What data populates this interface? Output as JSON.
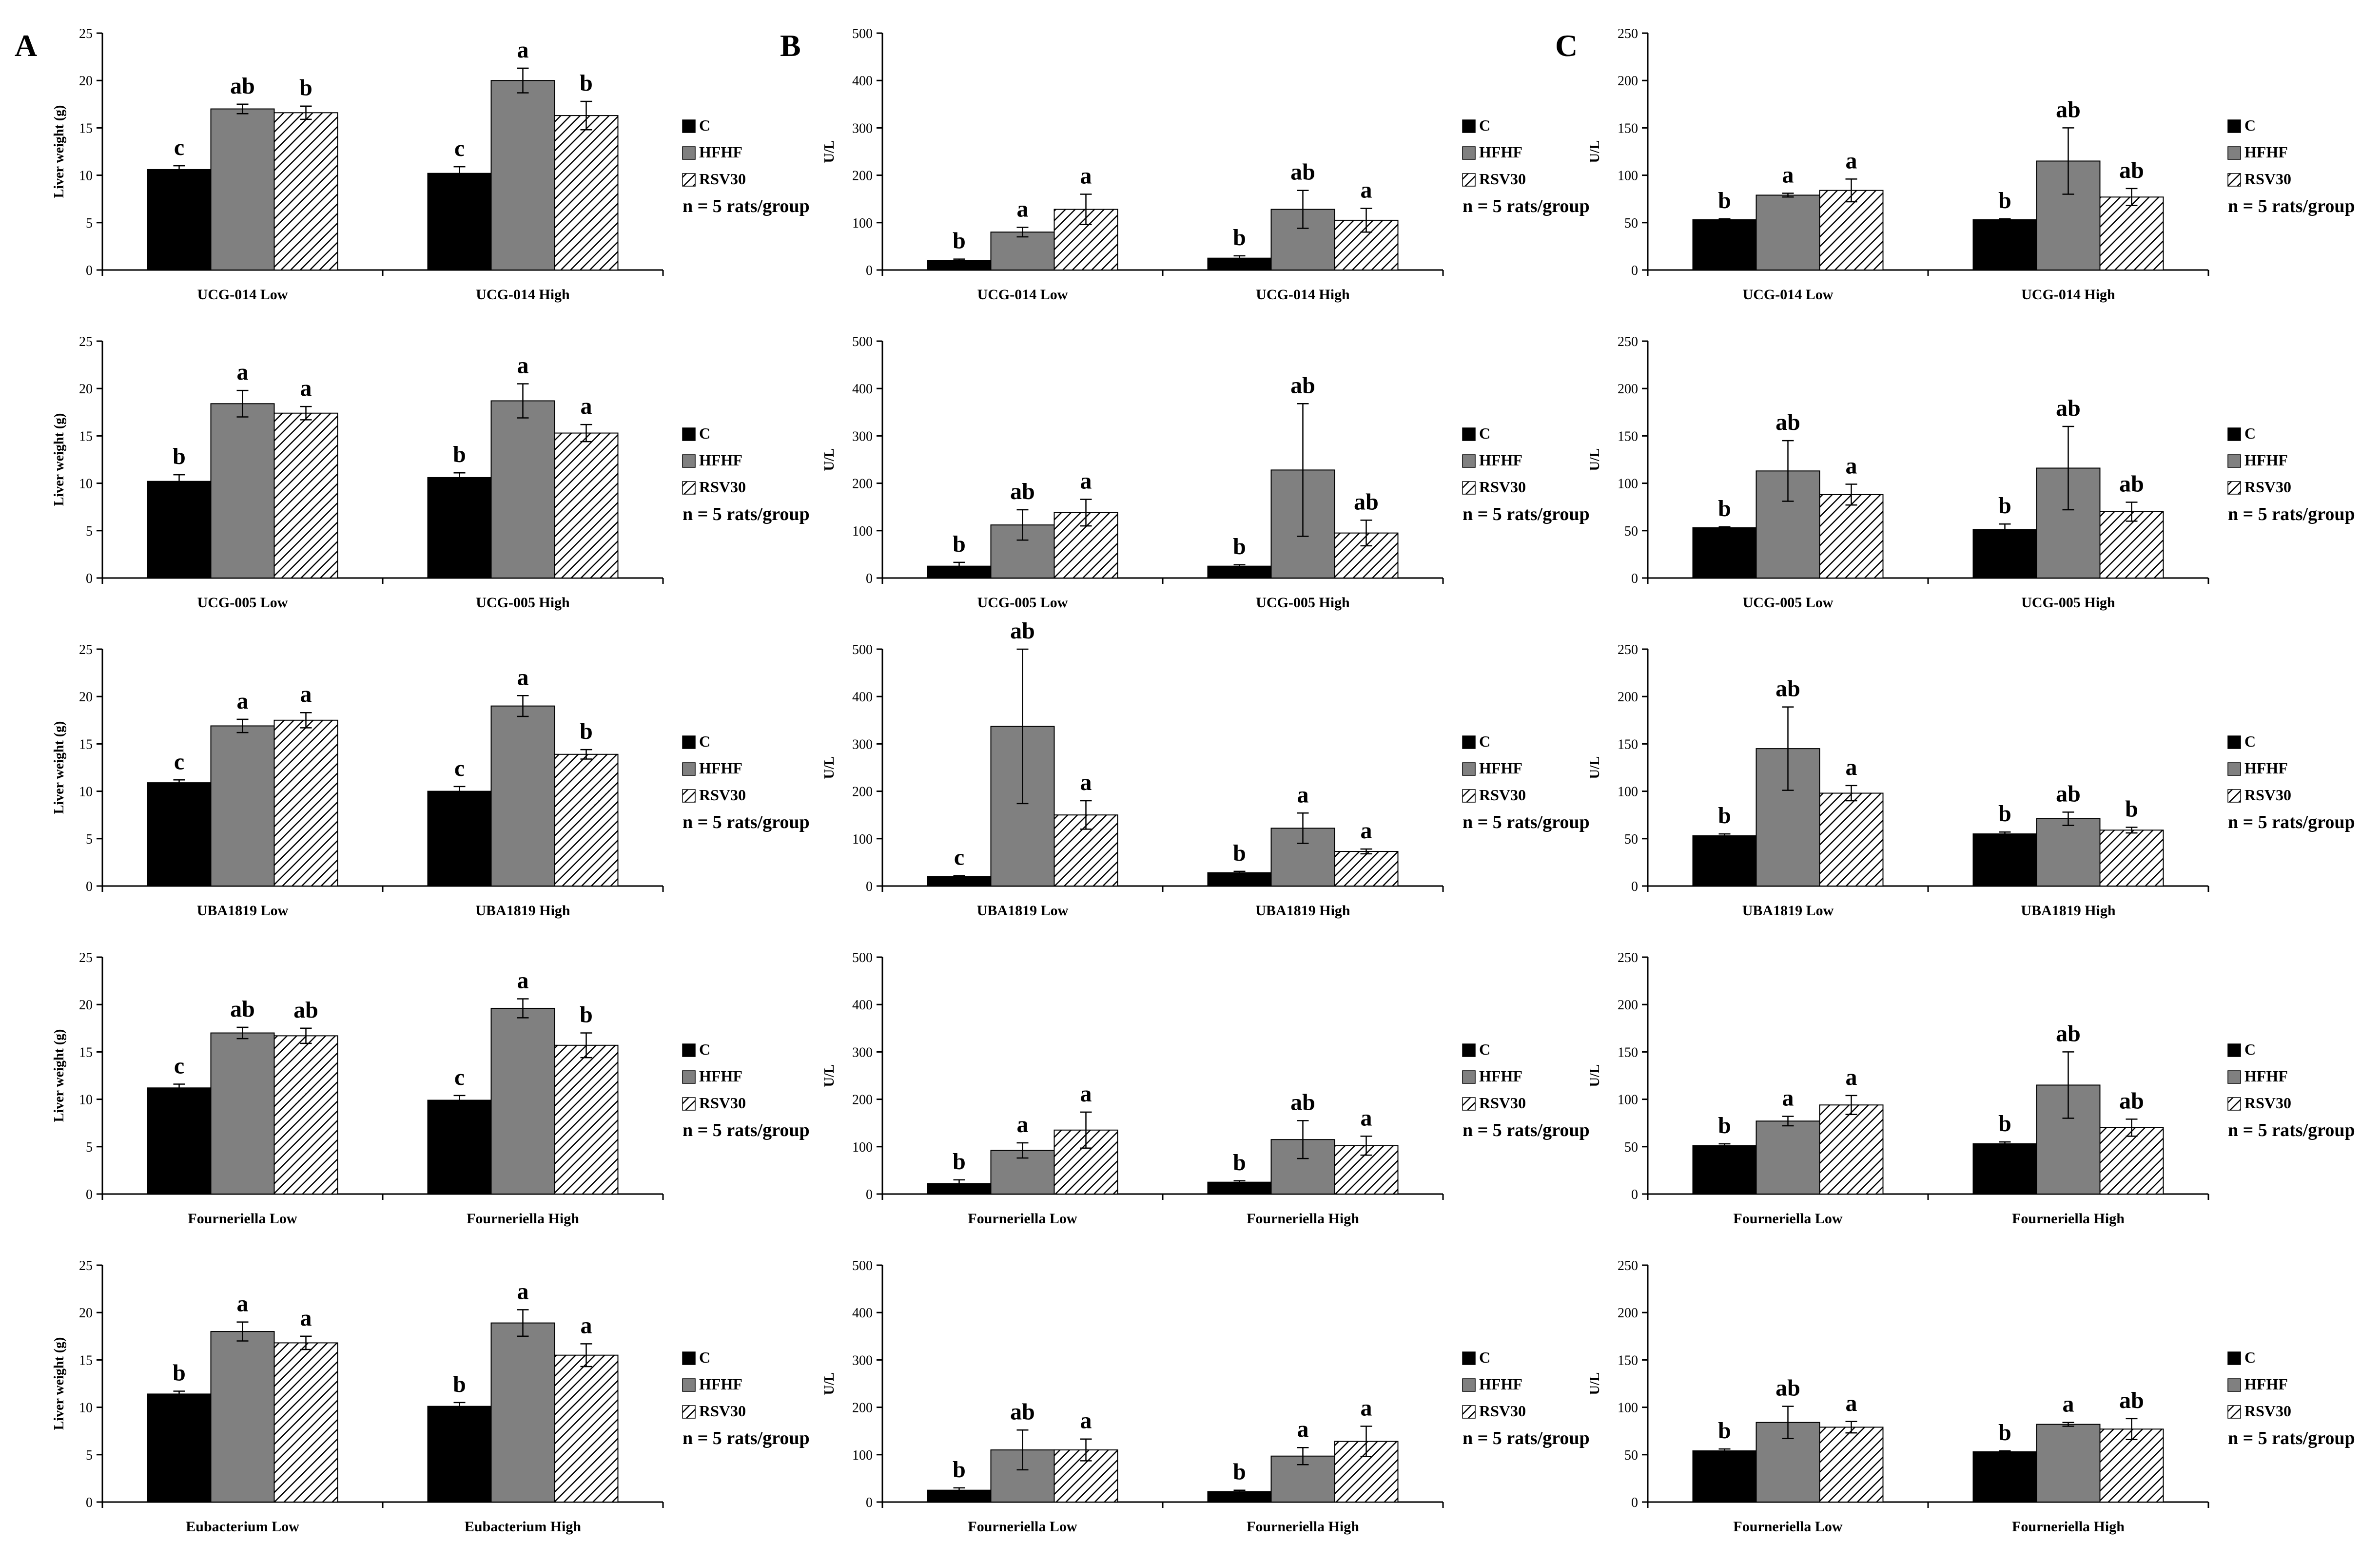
{
  "panel_letters": [
    "A",
    "B",
    "C"
  ],
  "legend": {
    "entries": [
      {
        "name": "C",
        "fill": "#000000",
        "pattern": "solid"
      },
      {
        "name": "HFHF",
        "fill": "#808080",
        "pattern": "solid"
      },
      {
        "name": "RSV30",
        "fill": "#ffffff",
        "pattern": "hatch"
      }
    ],
    "note": "n = 5 rats/group"
  },
  "chart_data": [
    {
      "type": "bar",
      "panel": "A",
      "row": 1,
      "title": "",
      "ylabel": "Liver weight (g)",
      "xlabel": "",
      "ylim": [
        0,
        25
      ],
      "yticks": [
        0,
        5,
        10,
        15,
        20,
        25
      ],
      "categories": [
        "UCG-014 Low",
        "UCG-014 High"
      ],
      "series": [
        {
          "name": "C",
          "values": [
            10.6,
            10.2
          ],
          "errors": [
            0.4,
            0.7
          ],
          "labels": [
            "c",
            "c"
          ]
        },
        {
          "name": "HFHF",
          "values": [
            17.0,
            20.0
          ],
          "errors": [
            0.5,
            1.3
          ],
          "labels": [
            "ab",
            "a"
          ]
        },
        {
          "name": "RSV30",
          "values": [
            16.6,
            16.3
          ],
          "errors": [
            0.7,
            1.5
          ],
          "labels": [
            "b",
            "b"
          ]
        }
      ]
    },
    {
      "type": "bar",
      "panel": "B",
      "row": 1,
      "title": "",
      "ylabel": "U/L",
      "xlabel": "",
      "ylim": [
        0,
        500
      ],
      "yticks": [
        0,
        100,
        200,
        300,
        400,
        500
      ],
      "categories": [
        "UCG-014 Low",
        "UCG-014 High"
      ],
      "series": [
        {
          "name": "C",
          "values": [
            20,
            25
          ],
          "errors": [
            3,
            5
          ],
          "labels": [
            "b",
            "b"
          ]
        },
        {
          "name": "HFHF",
          "values": [
            80,
            128
          ],
          "errors": [
            10,
            40
          ],
          "labels": [
            "a",
            "ab"
          ]
        },
        {
          "name": "RSV30",
          "values": [
            128,
            105
          ],
          "errors": [
            32,
            25
          ],
          "labels": [
            "a",
            "a"
          ]
        }
      ]
    },
    {
      "type": "bar",
      "panel": "C",
      "row": 1,
      "title": "",
      "ylabel": "U/L",
      "xlabel": "",
      "ylim": [
        0,
        250
      ],
      "yticks": [
        0,
        50,
        100,
        150,
        200,
        250
      ],
      "categories": [
        "UCG-014 Low",
        "UCG-014 High"
      ],
      "series": [
        {
          "name": "C",
          "values": [
            53,
            53
          ],
          "errors": [
            1,
            1
          ],
          "labels": [
            "b",
            "b"
          ]
        },
        {
          "name": "HFHF",
          "values": [
            79,
            115
          ],
          "errors": [
            2,
            35
          ],
          "labels": [
            "a",
            "ab"
          ]
        },
        {
          "name": "RSV30",
          "values": [
            84,
            77
          ],
          "errors": [
            12,
            9
          ],
          "labels": [
            "a",
            "ab"
          ]
        }
      ]
    },
    {
      "type": "bar",
      "panel": "A",
      "row": 2,
      "title": "",
      "ylabel": "Liver weight (g)",
      "xlabel": "",
      "ylim": [
        0,
        25
      ],
      "yticks": [
        0,
        5,
        10,
        15,
        20,
        25
      ],
      "categories": [
        "UCG-005 Low",
        "UCG-005 High"
      ],
      "series": [
        {
          "name": "C",
          "values": [
            10.2,
            10.6
          ],
          "errors": [
            0.7,
            0.5
          ],
          "labels": [
            "b",
            "b"
          ]
        },
        {
          "name": "HFHF",
          "values": [
            18.4,
            18.7
          ],
          "errors": [
            1.4,
            1.8
          ],
          "labels": [
            "a",
            "a"
          ]
        },
        {
          "name": "RSV30",
          "values": [
            17.4,
            15.3
          ],
          "errors": [
            0.7,
            0.9
          ],
          "labels": [
            "a",
            "a"
          ]
        }
      ]
    },
    {
      "type": "bar",
      "panel": "B",
      "row": 2,
      "title": "",
      "ylabel": "U/L",
      "xlabel": "",
      "ylim": [
        0,
        500
      ],
      "yticks": [
        0,
        100,
        200,
        300,
        400,
        500
      ],
      "categories": [
        "UCG-005 Low",
        "UCG-005 High"
      ],
      "series": [
        {
          "name": "C",
          "values": [
            25,
            25
          ],
          "errors": [
            8,
            3
          ],
          "labels": [
            "b",
            "b"
          ]
        },
        {
          "name": "HFHF",
          "values": [
            112,
            228
          ],
          "errors": [
            32,
            140
          ],
          "labels": [
            "ab",
            "ab"
          ]
        },
        {
          "name": "RSV30",
          "values": [
            138,
            95
          ],
          "errors": [
            28,
            27
          ],
          "labels": [
            "a",
            "ab"
          ]
        }
      ]
    },
    {
      "type": "bar",
      "panel": "C",
      "row": 2,
      "title": "",
      "ylabel": "U/L",
      "xlabel": "",
      "ylim": [
        0,
        250
      ],
      "yticks": [
        0,
        50,
        100,
        150,
        200,
        250
      ],
      "categories": [
        "UCG-005 Low",
        "UCG-005 High"
      ],
      "series": [
        {
          "name": "C",
          "values": [
            53,
            51
          ],
          "errors": [
            1,
            6
          ],
          "labels": [
            "b",
            "b"
          ]
        },
        {
          "name": "HFHF",
          "values": [
            113,
            116
          ],
          "errors": [
            32,
            44
          ],
          "labels": [
            "ab",
            "ab"
          ]
        },
        {
          "name": "RSV30",
          "values": [
            88,
            70
          ],
          "errors": [
            11,
            10
          ],
          "labels": [
            "a",
            "ab"
          ]
        }
      ]
    },
    {
      "type": "bar",
      "panel": "A",
      "row": 3,
      "title": "",
      "ylabel": "Liver weight (g)",
      "xlabel": "",
      "ylim": [
        0,
        25
      ],
      "yticks": [
        0,
        5,
        10,
        15,
        20,
        25
      ],
      "categories": [
        "UBA1819 Low",
        "UBA1819 High"
      ],
      "series": [
        {
          "name": "C",
          "values": [
            10.9,
            10.0
          ],
          "errors": [
            0.3,
            0.5
          ],
          "labels": [
            "c",
            "c"
          ]
        },
        {
          "name": "HFHF",
          "values": [
            16.9,
            19.0
          ],
          "errors": [
            0.7,
            1.1
          ],
          "labels": [
            "a",
            "a"
          ]
        },
        {
          "name": "RSV30",
          "values": [
            17.5,
            13.9
          ],
          "errors": [
            0.8,
            0.5
          ],
          "labels": [
            "a",
            "b"
          ]
        }
      ]
    },
    {
      "type": "bar",
      "panel": "B",
      "row": 3,
      "title": "",
      "ylabel": "U/L",
      "xlabel": "",
      "ylim": [
        0,
        500
      ],
      "yticks": [
        0,
        100,
        200,
        300,
        400,
        500
      ],
      "categories": [
        "UBA1819 Low",
        "UBA1819 High"
      ],
      "series": [
        {
          "name": "C",
          "values": [
            20,
            28
          ],
          "errors": [
            2,
            3
          ],
          "labels": [
            "c",
            "b"
          ]
        },
        {
          "name": "HFHF",
          "values": [
            337,
            122
          ],
          "errors": [
            163,
            32
          ],
          "labels": [
            "ab",
            "a"
          ]
        },
        {
          "name": "RSV30",
          "values": [
            150,
            73
          ],
          "errors": [
            30,
            5
          ],
          "labels": [
            "a",
            "a"
          ]
        }
      ]
    },
    {
      "type": "bar",
      "panel": "C",
      "row": 3,
      "title": "",
      "ylabel": "U/L",
      "xlabel": "",
      "ylim": [
        0,
        250
      ],
      "yticks": [
        0,
        50,
        100,
        150,
        200,
        250
      ],
      "categories": [
        "UBA1819 Low",
        "UBA1819 High"
      ],
      "series": [
        {
          "name": "C",
          "values": [
            53,
            55
          ],
          "errors": [
            2,
            2
          ],
          "labels": [
            "b",
            "b"
          ]
        },
        {
          "name": "HFHF",
          "values": [
            145,
            71
          ],
          "errors": [
            44,
            7
          ],
          "labels": [
            "ab",
            "ab"
          ]
        },
        {
          "name": "RSV30",
          "values": [
            98,
            59
          ],
          "errors": [
            8,
            3
          ],
          "labels": [
            "a",
            "b"
          ]
        }
      ]
    },
    {
      "type": "bar",
      "panel": "A",
      "row": 4,
      "title": "",
      "ylabel": "Liver weight (g)",
      "xlabel": "",
      "ylim": [
        0,
        25
      ],
      "yticks": [
        0,
        5,
        10,
        15,
        20,
        25
      ],
      "categories": [
        "Fourneriella Low",
        "Fourneriella High"
      ],
      "series": [
        {
          "name": "C",
          "values": [
            11.2,
            9.9
          ],
          "errors": [
            0.4,
            0.5
          ],
          "labels": [
            "c",
            "c"
          ]
        },
        {
          "name": "HFHF",
          "values": [
            17.0,
            19.6
          ],
          "errors": [
            0.6,
            1.0
          ],
          "labels": [
            "ab",
            "a"
          ]
        },
        {
          "name": "RSV30",
          "values": [
            16.7,
            15.7
          ],
          "errors": [
            0.8,
            1.3
          ],
          "labels": [
            "ab",
            "b"
          ]
        }
      ]
    },
    {
      "type": "bar",
      "panel": "B",
      "row": 4,
      "title": "",
      "ylabel": "U/L",
      "xlabel": "",
      "ylim": [
        0,
        500
      ],
      "yticks": [
        0,
        100,
        200,
        300,
        400,
        500
      ],
      "categories": [
        "Fourneriella Low",
        "Fourneriella High"
      ],
      "series": [
        {
          "name": "C",
          "values": [
            22,
            25
          ],
          "errors": [
            8,
            3
          ],
          "labels": [
            "b",
            "b"
          ]
        },
        {
          "name": "HFHF",
          "values": [
            92,
            115
          ],
          "errors": [
            16,
            40
          ],
          "labels": [
            "a",
            "ab"
          ]
        },
        {
          "name": "RSV30",
          "values": [
            135,
            102
          ],
          "errors": [
            38,
            20
          ],
          "labels": [
            "a",
            "a"
          ]
        }
      ]
    },
    {
      "type": "bar",
      "panel": "C",
      "row": 4,
      "title": "",
      "ylabel": "U/L",
      "xlabel": "",
      "ylim": [
        0,
        250
      ],
      "yticks": [
        0,
        50,
        100,
        150,
        200,
        250
      ],
      "categories": [
        "Fourneriella Low",
        "Fourneriella High"
      ],
      "series": [
        {
          "name": "C",
          "values": [
            51,
            53
          ],
          "errors": [
            2,
            2
          ],
          "labels": [
            "b",
            "b"
          ]
        },
        {
          "name": "HFHF",
          "values": [
            77,
            115
          ],
          "errors": [
            5,
            35
          ],
          "labels": [
            "a",
            "ab"
          ]
        },
        {
          "name": "RSV30",
          "values": [
            94,
            70
          ],
          "errors": [
            10,
            9
          ],
          "labels": [
            "a",
            "ab"
          ]
        }
      ]
    },
    {
      "type": "bar",
      "panel": "A",
      "row": 5,
      "title": "",
      "ylabel": "Liver weight (g)",
      "xlabel": "",
      "ylim": [
        0,
        25
      ],
      "yticks": [
        0,
        5,
        10,
        15,
        20,
        25
      ],
      "categories": [
        "Eubacterium Low",
        "Eubacterium High"
      ],
      "series": [
        {
          "name": "C",
          "values": [
            11.4,
            10.1
          ],
          "errors": [
            0.3,
            0.4
          ],
          "labels": [
            "b",
            "b"
          ]
        },
        {
          "name": "HFHF",
          "values": [
            18.0,
            18.9
          ],
          "errors": [
            1.0,
            1.4
          ],
          "labels": [
            "a",
            "a"
          ]
        },
        {
          "name": "RSV30",
          "values": [
            16.8,
            15.5
          ],
          "errors": [
            0.7,
            1.2
          ],
          "labels": [
            "a",
            "a"
          ]
        }
      ]
    },
    {
      "type": "bar",
      "panel": "B",
      "row": 5,
      "title": "",
      "ylabel": "U/L",
      "xlabel": "",
      "ylim": [
        0,
        500
      ],
      "yticks": [
        0,
        100,
        200,
        300,
        400,
        500
      ],
      "categories": [
        "Fourneriella Low",
        "Fourneriella High"
      ],
      "series": [
        {
          "name": "C",
          "values": [
            25,
            22
          ],
          "errors": [
            5,
            3
          ],
          "labels": [
            "b",
            "b"
          ]
        },
        {
          "name": "HFHF",
          "values": [
            110,
            97
          ],
          "errors": [
            42,
            18
          ],
          "labels": [
            "ab",
            "a"
          ]
        },
        {
          "name": "RSV30",
          "values": [
            110,
            128
          ],
          "errors": [
            23,
            32
          ],
          "labels": [
            "a",
            "a"
          ]
        }
      ]
    },
    {
      "type": "bar",
      "panel": "C",
      "row": 5,
      "title": "",
      "ylabel": "U/L",
      "xlabel": "",
      "ylim": [
        0,
        250
      ],
      "yticks": [
        0,
        50,
        100,
        150,
        200,
        250
      ],
      "categories": [
        "Fourneriella Low",
        "Fourneriella High"
      ],
      "series": [
        {
          "name": "C",
          "values": [
            54,
            53
          ],
          "errors": [
            2,
            1
          ],
          "labels": [
            "b",
            "b"
          ]
        },
        {
          "name": "HFHF",
          "values": [
            84,
            82
          ],
          "errors": [
            17,
            2
          ],
          "labels": [
            "ab",
            "a"
          ]
        },
        {
          "name": "RSV30",
          "values": [
            79,
            77
          ],
          "errors": [
            6,
            11
          ],
          "labels": [
            "a",
            "ab"
          ]
        }
      ]
    }
  ]
}
